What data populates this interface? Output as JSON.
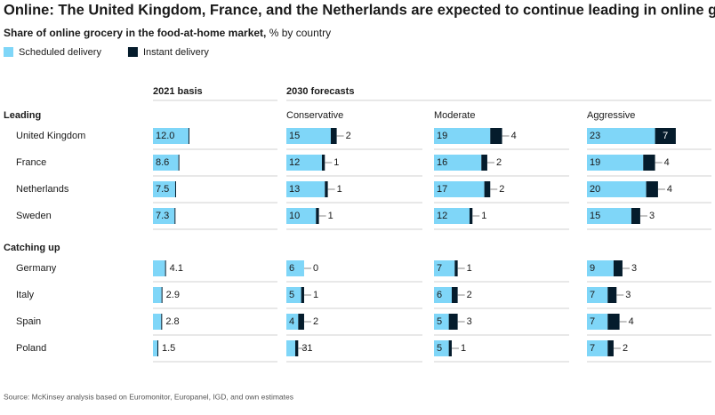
{
  "chart_data": {
    "type": "bar",
    "orientation": "horizontal",
    "stacked": true,
    "title": "Online: The United Kingdom, France, and the Netherlands are expected to continue leading in online grocery.",
    "subtitle": "Share of online grocery in the food-at-home market,",
    "subtitle_unit": "% by country",
    "series": [
      {
        "name": "Scheduled delivery",
        "color": "#7fd6f8"
      },
      {
        "name": "Instant delivery",
        "color": "#051c2c"
      }
    ],
    "headers": [
      "2021 basis",
      "2030 forecasts"
    ],
    "groups": [
      {
        "label": "Leading",
        "categories": [
          "United Kingdom",
          "France",
          "Netherlands",
          "Sweden"
        ]
      },
      {
        "label": "Catching up",
        "categories": [
          "Germany",
          "Italy",
          "Spain",
          "Poland"
        ]
      }
    ],
    "panels": [
      {
        "series": [
          {
            "values": [
              12.0,
              8.6,
              7.5,
              7.3,
              4.1,
              2.9,
              2.8,
              1.5
            ],
            "value_labels": [
              "12.0",
              "8.6",
              "7.5",
              "7.3",
              "4.1",
              "2.9",
              "2.8",
              "1.5"
            ]
          },
          {
            "values": [
              0.3,
              0.3,
              0.3,
              0.3,
              0.3,
              0.3,
              0.3,
              0.3
            ],
            "labeled": false
          }
        ]
      },
      {
        "label": "Conservative",
        "series": [
          {
            "values": [
              15,
              12,
              13,
              10,
              6,
              5,
              4,
              3
            ]
          },
          {
            "values": [
              2,
              1,
              1,
              1,
              0,
              1,
              2,
              1
            ]
          }
        ]
      },
      {
        "label": "Moderate",
        "series": [
          {
            "values": [
              19,
              16,
              17,
              12,
              7,
              6,
              5,
              5
            ]
          },
          {
            "values": [
              4,
              2,
              2,
              1,
              1,
              2,
              3,
              1
            ]
          }
        ]
      },
      {
        "label": "Aggressive",
        "series": [
          {
            "values": [
              23,
              19,
              20,
              15,
              9,
              7,
              7,
              7
            ]
          },
          {
            "values": [
              7,
              4,
              4,
              3,
              3,
              3,
              4,
              2
            ]
          }
        ]
      }
    ],
    "source": "Source: McKinsey analysis based on Euromonitor, Europanel, IGD, and own estimates"
  }
}
